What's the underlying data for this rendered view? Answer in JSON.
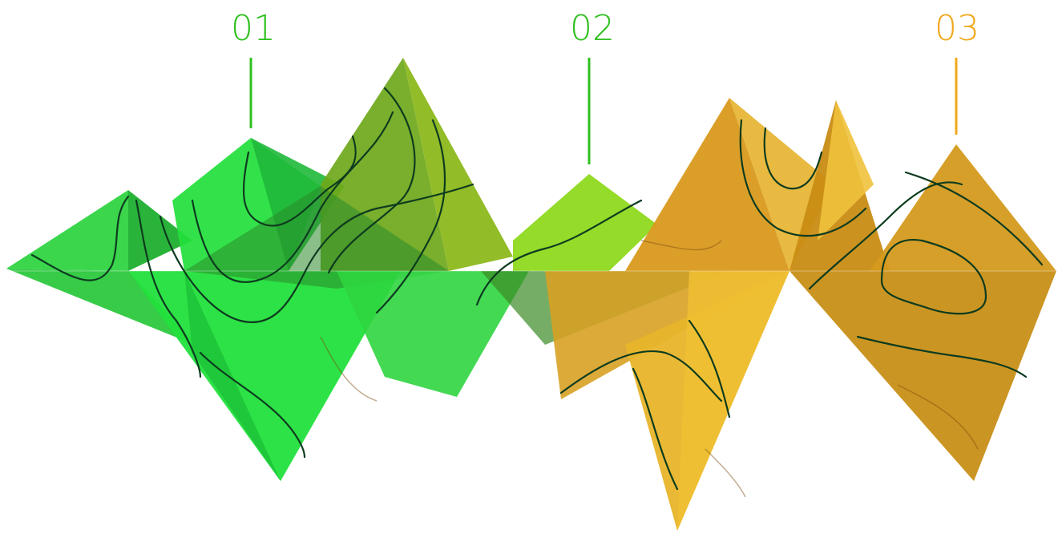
{
  "markers": [
    {
      "label": "01",
      "color": "#2fbf1f"
    },
    {
      "label": "02",
      "color": "#2fbf1f"
    },
    {
      "label": "03",
      "color": "#f0a81c"
    }
  ],
  "palette": {
    "green_bright": "#22e03c",
    "green_mid": "#1fc83a",
    "green_dark": "#2a9a2a",
    "olive": "#7fa81a",
    "lime": "#8ed91f",
    "gold": "#e6b22c",
    "amber": "#d99a1d",
    "ochre": "#c98c14",
    "contour": "#0d3b1f"
  }
}
